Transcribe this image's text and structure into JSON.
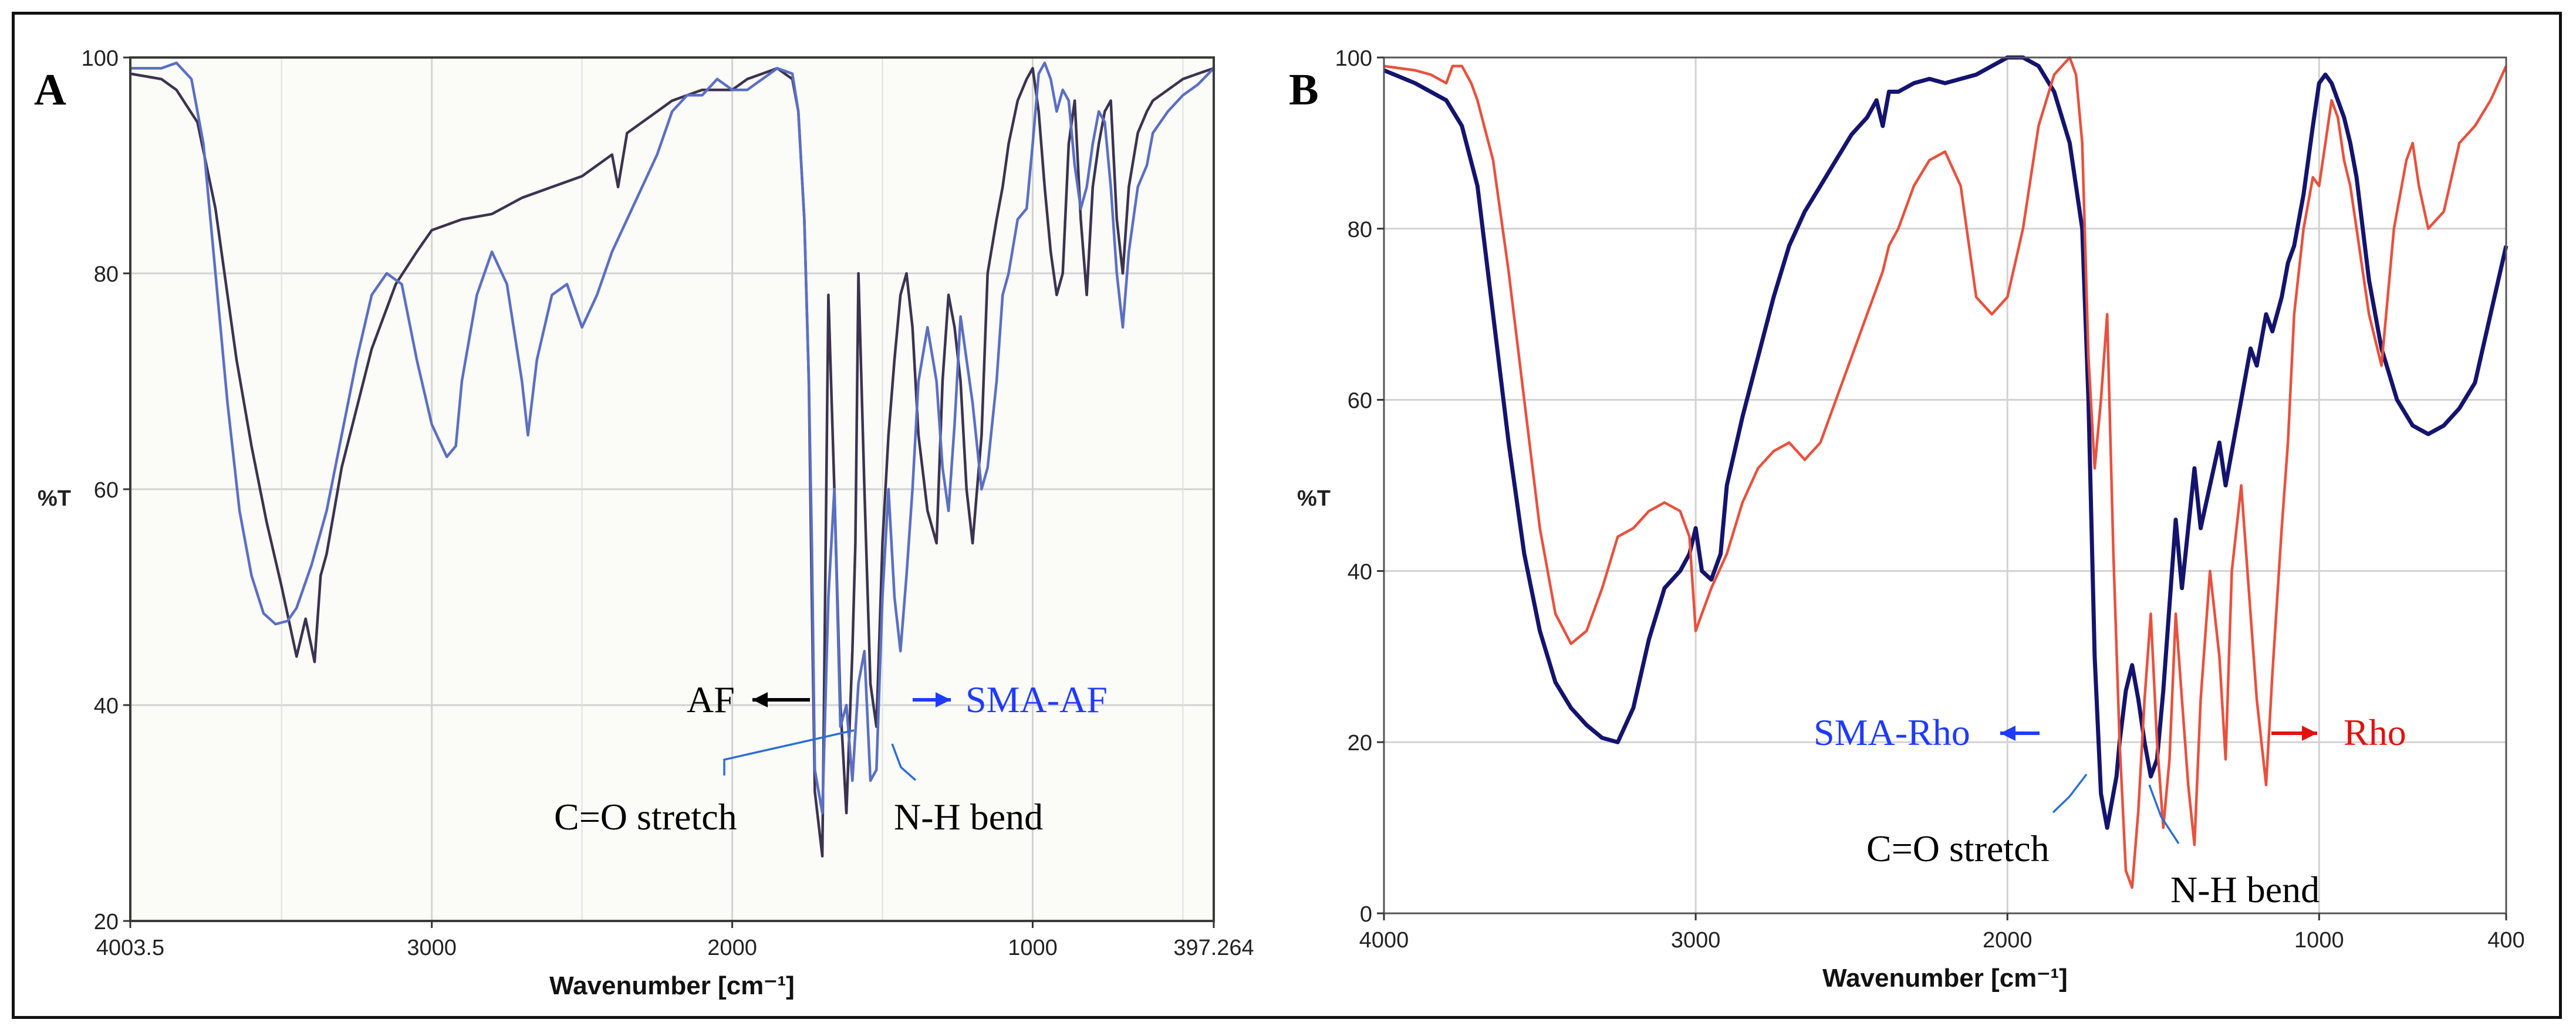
{
  "chart_data": [
    {
      "panel": "A",
      "type": "line",
      "xlabel": "Wavenumber [cm⁻¹]",
      "ylabel": "%T",
      "xlim": [
        4003.5,
        397.264
      ],
      "ylim": [
        20,
        100
      ],
      "xticks": [
        4003.5,
        3000,
        2000,
        1000,
        397.264
      ],
      "xtick_labels": [
        "4003.5",
        "3000",
        "2000",
        "1000",
        "397.264"
      ],
      "yticks": [
        20,
        40,
        60,
        80,
        100
      ],
      "yticks_shown": [
        40,
        60,
        80,
        100
      ],
      "ytick_labels": [
        "20",
        "40",
        "60",
        "80",
        "100"
      ],
      "grid": true,
      "series": [
        {
          "name": "AF",
          "color": "#3b3350",
          "x": [
            4003.5,
            3900,
            3850,
            3780,
            3720,
            3650,
            3600,
            3550,
            3500,
            3450,
            3420,
            3390,
            3370,
            3350,
            3300,
            3200,
            3120,
            3050,
            3000,
            2900,
            2800,
            2700,
            2600,
            2500,
            2400,
            2380,
            2350,
            2300,
            2200,
            2100,
            2000,
            1950,
            1900,
            1850,
            1800,
            1780,
            1760,
            1745,
            1735,
            1725,
            1700,
            1680,
            1660,
            1640,
            1620,
            1600,
            1590,
            1580,
            1560,
            1540,
            1520,
            1500,
            1480,
            1460,
            1440,
            1420,
            1400,
            1380,
            1350,
            1320,
            1300,
            1280,
            1260,
            1240,
            1220,
            1200,
            1170,
            1150,
            1120,
            1100,
            1080,
            1050,
            1020,
            1000,
            980,
            960,
            940,
            920,
            900,
            880,
            860,
            840,
            820,
            800,
            780,
            760,
            740,
            720,
            700,
            680,
            650,
            620,
            600,
            550,
            500,
            450,
            397.264
          ],
          "y": [
            98.5,
            98,
            97,
            94,
            86,
            72,
            64,
            57,
            51,
            44.5,
            48,
            44,
            52,
            54,
            62,
            73,
            79,
            82,
            84,
            85,
            85.5,
            87,
            88,
            89,
            91,
            88,
            93,
            94,
            96,
            97,
            97,
            98,
            98.5,
            99,
            98,
            95,
            85,
            70,
            50,
            32,
            26,
            78,
            60,
            40,
            30,
            45,
            55,
            80,
            60,
            42,
            38,
            55,
            65,
            72,
            78,
            80,
            75,
            65,
            58,
            55,
            70,
            78,
            75,
            70,
            60,
            55,
            65,
            80,
            85,
            88,
            92,
            96,
            98,
            99,
            95,
            88,
            82,
            78,
            80,
            92,
            96,
            85,
            78,
            88,
            92,
            95,
            96,
            85,
            80,
            88,
            93,
            95,
            96,
            97,
            98,
            98.5,
            99
          ]
        },
        {
          "name": "SMA-AF",
          "color": "#5a6fc4",
          "x": [
            4003.5,
            3900,
            3850,
            3800,
            3760,
            3720,
            3680,
            3640,
            3600,
            3560,
            3520,
            3480,
            3450,
            3400,
            3350,
            3300,
            3250,
            3200,
            3150,
            3100,
            3050,
            3000,
            2950,
            2920,
            2900,
            2850,
            2800,
            2750,
            2700,
            2680,
            2650,
            2600,
            2550,
            2500,
            2450,
            2400,
            2350,
            2300,
            2250,
            2200,
            2150,
            2100,
            2050,
            2000,
            1950,
            1900,
            1850,
            1800,
            1780,
            1760,
            1745,
            1735,
            1725,
            1700,
            1680,
            1660,
            1640,
            1620,
            1600,
            1580,
            1560,
            1540,
            1520,
            1500,
            1480,
            1460,
            1440,
            1420,
            1400,
            1380,
            1350,
            1320,
            1300,
            1280,
            1260,
            1240,
            1220,
            1200,
            1170,
            1150,
            1120,
            1100,
            1080,
            1050,
            1020,
            1000,
            980,
            960,
            940,
            920,
            900,
            880,
            860,
            840,
            820,
            800,
            780,
            760,
            740,
            720,
            700,
            680,
            650,
            620,
            600,
            550,
            500,
            450,
            397.264
          ],
          "y": [
            99,
            99,
            99.5,
            98,
            92,
            80,
            68,
            58,
            52,
            48.5,
            47.5,
            47.8,
            49,
            53,
            58,
            65,
            72,
            78,
            80,
            79,
            72,
            66,
            63,
            64,
            70,
            78,
            82,
            79,
            70,
            65,
            72,
            78,
            79,
            75,
            78,
            82,
            85,
            88,
            91,
            95,
            96.5,
            96.5,
            98,
            97,
            97,
            98,
            99,
            98.5,
            95,
            85,
            70,
            55,
            34,
            30,
            50,
            60,
            38,
            40,
            33,
            42,
            45,
            33,
            34,
            50,
            60,
            50,
            45,
            52,
            60,
            70,
            75,
            70,
            62,
            58,
            66,
            76,
            72,
            68,
            60,
            62,
            70,
            78,
            80,
            85,
            86,
            92,
            98.5,
            99.5,
            98,
            95,
            97,
            96,
            90,
            86,
            88,
            92,
            95,
            94,
            88,
            80,
            75,
            82,
            88,
            90,
            93,
            95,
            96.5,
            97.5,
            99
          ]
        }
      ],
      "annotations": [
        {
          "text": "AF",
          "arrow": "left",
          "color": "#000000"
        },
        {
          "text": "SMA-AF",
          "arrow": "right",
          "color": "#1f3bff"
        },
        {
          "text": "C=O stretch",
          "color": "#000000",
          "points_to_x": 1640
        },
        {
          "text": "N-H bend",
          "color": "#000000",
          "points_to_x": 1535
        }
      ]
    },
    {
      "panel": "B",
      "type": "line",
      "xlabel": "Wavenumber [cm⁻¹]",
      "ylabel": "%T",
      "xlim": [
        4000,
        400
      ],
      "ylim": [
        0,
        100
      ],
      "xticks": [
        4000,
        3000,
        2000,
        1000,
        400
      ],
      "xtick_labels": [
        "4000",
        "3000",
        "2000",
        "1000",
        "400"
      ],
      "yticks": [
        0,
        20,
        40,
        60,
        80,
        100
      ],
      "ytick_labels": [
        "0",
        "20",
        "40",
        "60",
        "80",
        "100"
      ],
      "grid": true,
      "series": [
        {
          "name": "SMA-Rho",
          "color": "#14146e",
          "x": [
            4000,
            3900,
            3800,
            3750,
            3700,
            3650,
            3600,
            3550,
            3500,
            3450,
            3400,
            3350,
            3300,
            3250,
            3200,
            3150,
            3100,
            3050,
            3020,
            3000,
            2980,
            2950,
            2920,
            2900,
            2850,
            2800,
            2750,
            2700,
            2650,
            2600,
            2550,
            2500,
            2450,
            2420,
            2400,
            2380,
            2350,
            2300,
            2250,
            2200,
            2150,
            2100,
            2050,
            2000,
            1950,
            1900,
            1850,
            1800,
            1760,
            1740,
            1720,
            1700,
            1680,
            1670,
            1660,
            1650,
            1640,
            1620,
            1600,
            1580,
            1560,
            1540,
            1520,
            1500,
            1480,
            1460,
            1440,
            1420,
            1400,
            1380,
            1350,
            1320,
            1300,
            1280,
            1250,
            1220,
            1200,
            1170,
            1150,
            1120,
            1100,
            1080,
            1050,
            1020,
            1000,
            980,
            960,
            940,
            920,
            900,
            880,
            860,
            840,
            800,
            750,
            700,
            650,
            600,
            550,
            500,
            450,
            400
          ],
          "y": [
            98.5,
            97,
            95,
            92,
            85,
            70,
            55,
            42,
            33,
            27,
            24,
            22,
            20.5,
            20,
            24,
            32,
            38,
            40,
            42,
            45,
            40,
            39,
            42,
            50,
            58,
            65,
            72,
            78,
            82,
            85,
            88,
            91,
            93,
            95,
            92,
            96,
            96,
            97,
            97.5,
            97,
            97.5,
            98,
            99,
            100,
            100,
            99,
            96,
            90,
            80,
            60,
            30,
            14,
            10,
            12,
            14,
            16,
            20,
            26,
            29,
            25,
            20,
            16,
            18,
            26,
            36,
            46,
            38,
            45,
            52,
            45,
            50,
            55,
            50,
            54,
            60,
            66,
            64,
            70,
            68,
            72,
            76,
            78,
            84,
            92,
            97,
            98,
            97,
            95,
            93,
            90,
            86,
            80,
            74,
            66,
            60,
            57,
            56,
            57,
            59,
            62,
            70,
            78
          ]
        },
        {
          "name": "Rho",
          "color": "#e8513d",
          "x": [
            4000,
            3900,
            3850,
            3800,
            3780,
            3750,
            3720,
            3700,
            3650,
            3600,
            3550,
            3500,
            3450,
            3400,
            3350,
            3300,
            3250,
            3200,
            3150,
            3100,
            3050,
            3020,
            3000,
            2980,
            2950,
            2900,
            2850,
            2800,
            2750,
            2700,
            2650,
            2600,
            2550,
            2500,
            2450,
            2400,
            2380,
            2350,
            2300,
            2250,
            2200,
            2150,
            2100,
            2050,
            2000,
            1950,
            1900,
            1850,
            1800,
            1780,
            1760,
            1740,
            1720,
            1700,
            1680,
            1660,
            1640,
            1620,
            1600,
            1580,
            1560,
            1540,
            1520,
            1500,
            1480,
            1460,
            1440,
            1420,
            1400,
            1380,
            1350,
            1320,
            1300,
            1280,
            1250,
            1220,
            1200,
            1170,
            1150,
            1120,
            1100,
            1080,
            1050,
            1020,
            1000,
            980,
            960,
            940,
            920,
            900,
            880,
            860,
            840,
            800,
            760,
            720,
            700,
            680,
            650,
            600,
            550,
            500,
            450,
            400
          ],
          "y": [
            99,
            98.5,
            98,
            97,
            99,
            99,
            97,
            95,
            88,
            75,
            60,
            45,
            35,
            31.5,
            33,
            38,
            44,
            45,
            47,
            48,
            47,
            44,
            33,
            35,
            38,
            42,
            48,
            52,
            54,
            55,
            53,
            55,
            60,
            65,
            70,
            75,
            78,
            80,
            85,
            88,
            89,
            85,
            72,
            70,
            72,
            80,
            92,
            98,
            100,
            98,
            90,
            65,
            52,
            60,
            70,
            42,
            20,
            5,
            3,
            12,
            25,
            35,
            20,
            10,
            18,
            35,
            25,
            15,
            8,
            25,
            40,
            30,
            18,
            40,
            50,
            35,
            25,
            15,
            28,
            45,
            55,
            70,
            80,
            86,
            85,
            90,
            95,
            93,
            88,
            85,
            80,
            75,
            70,
            64,
            80,
            88,
            90,
            85,
            80,
            82,
            90,
            92,
            95,
            99
          ]
        }
      ],
      "annotations": [
        {
          "text": "SMA-Rho",
          "arrow": "left",
          "color": "#1f3bff"
        },
        {
          "text": "Rho",
          "arrow": "right",
          "color": "#e0120f"
        },
        {
          "text": "C=O stretch",
          "color": "#000000",
          "points_to_x": 1660
        },
        {
          "text": "N-H bend",
          "color": "#000000",
          "points_to_x": 1540
        }
      ]
    }
  ]
}
